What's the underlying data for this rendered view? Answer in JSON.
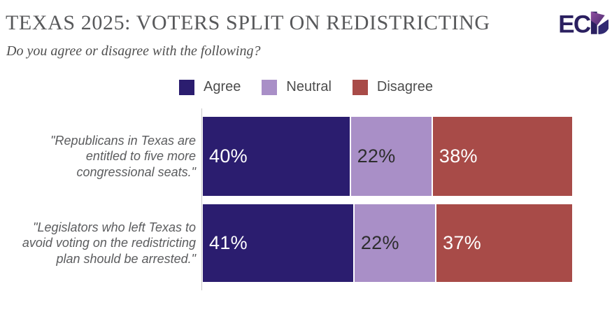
{
  "header": {
    "title": "TEXAS 2025: VOTERS SPLIT ON REDISTRICTING",
    "subtitle": "Do you agree or disagree with the following?",
    "logo_text": "ECP",
    "logo_ec": "EC"
  },
  "legend": {
    "items": [
      {
        "label": "Agree",
        "color": "#2b1d6f"
      },
      {
        "label": "Neutral",
        "color": "#a98fc7"
      },
      {
        "label": "Disagree",
        "color": "#a84b48"
      }
    ]
  },
  "chart_data": {
    "type": "bar",
    "orientation": "horizontal",
    "stacked": true,
    "unit": "%",
    "xlim": [
      0,
      100
    ],
    "grid": false,
    "legend_position": "top",
    "categories": [
      "\"Republicans in Texas are entitled to five more congressional seats.\"",
      "\"Legislators who left Texas to avoid voting on the redistricting plan should be arrested.\""
    ],
    "series": [
      {
        "name": "Agree",
        "color": "#2b1d6f",
        "label_color": "#ffffff",
        "values": [
          40,
          41
        ]
      },
      {
        "name": "Neutral",
        "color": "#a98fc7",
        "label_color": "#2d2d2d",
        "values": [
          22,
          22
        ]
      },
      {
        "name": "Disagree",
        "color": "#a84b48",
        "label_color": "#ffffff",
        "values": [
          38,
          37
        ]
      }
    ],
    "value_labels": [
      [
        "40%",
        "22%",
        "38%"
      ],
      [
        "41%",
        "22%",
        "37%"
      ]
    ]
  },
  "colors": {
    "title": "#58595b",
    "subtitle": "#4f4f4f",
    "category_label": "#5b5c5e",
    "legend_text": "#4d4d4d",
    "axis_line": "#c8c8c8",
    "background": "#ffffff",
    "logo_navy": "#2b2060",
    "logo_purple": "#7e3f97"
  }
}
